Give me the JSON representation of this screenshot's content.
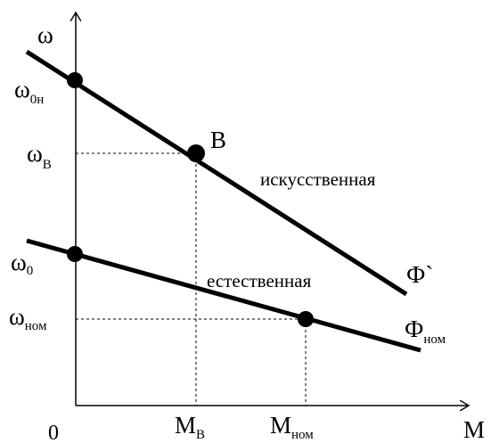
{
  "axes": {
    "y_label": "ω",
    "x_label": "M",
    "origin_label": "0"
  },
  "y_ticks": [
    {
      "main": "ω",
      "sub": "0н"
    },
    {
      "main": "ω",
      "sub": "В"
    },
    {
      "main": "ω",
      "sub": "0"
    },
    {
      "main": "ω",
      "sub": "ном"
    }
  ],
  "x_ticks": [
    {
      "main": "M",
      "sub": "В"
    },
    {
      "main": "M",
      "sub": "ном"
    }
  ],
  "point_label": "B",
  "line_labels": {
    "artificial": "искусственная",
    "natural": "естественная"
  },
  "flux_labels": {
    "artificial": "Ф`",
    "natural_main": "Ф",
    "natural_sub": "ном"
  }
}
